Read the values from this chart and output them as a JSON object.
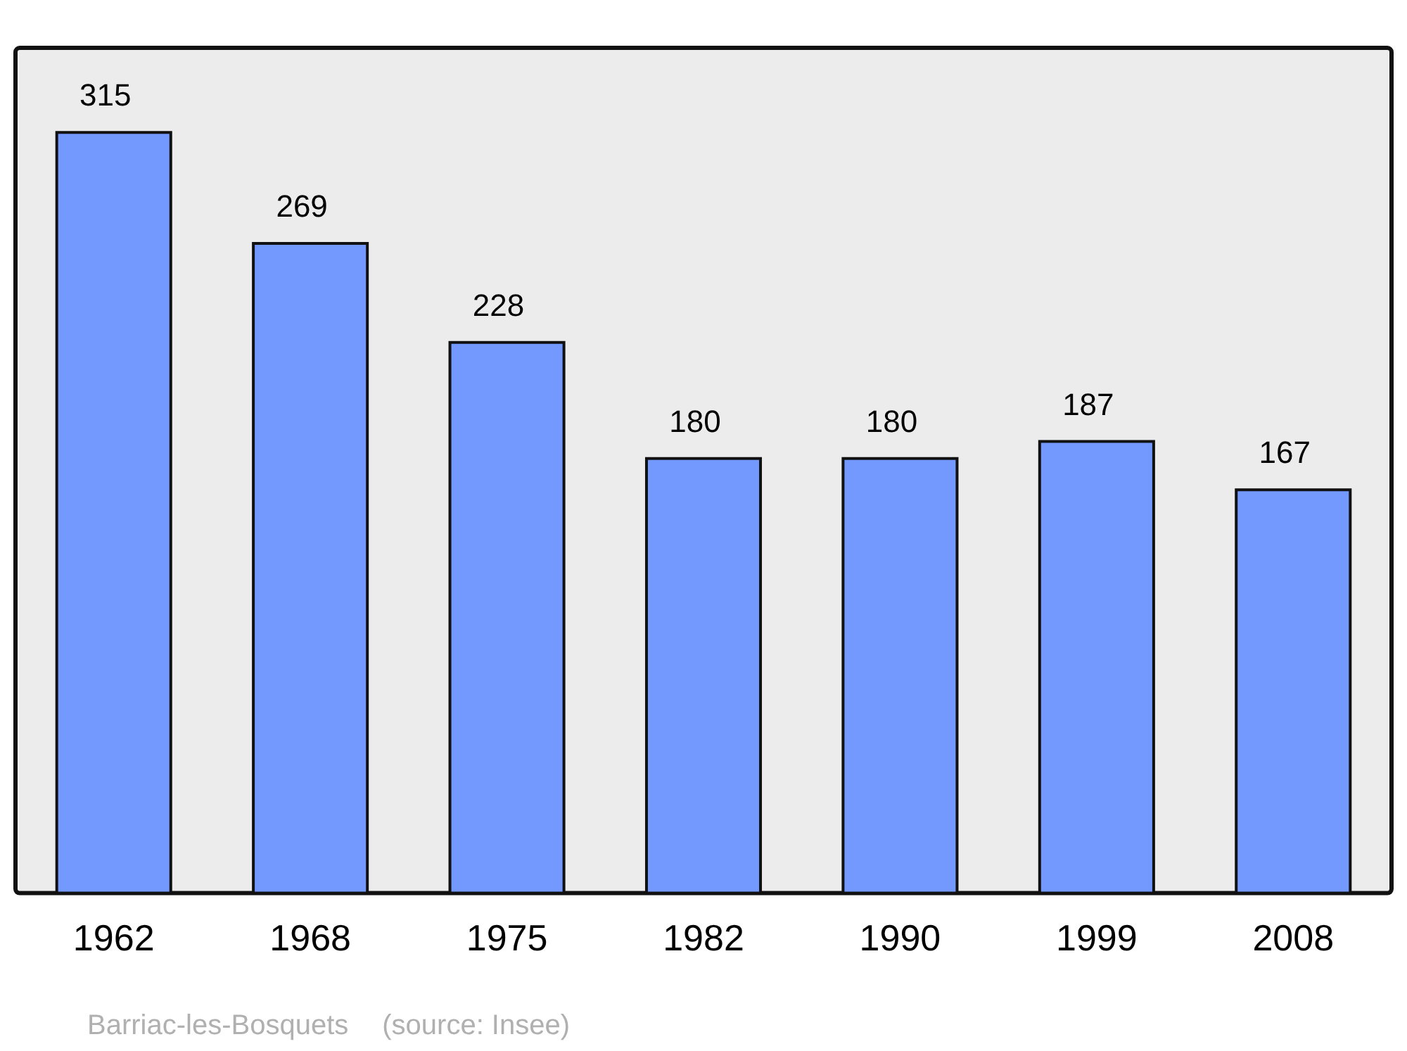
{
  "chart_data": {
    "type": "bar",
    "categories": [
      "1962",
      "1968",
      "1975",
      "1982",
      "1990",
      "1999",
      "2008"
    ],
    "values": [
      315,
      269,
      228,
      180,
      180,
      187,
      167
    ],
    "color": "#7399ff",
    "data_labels": true,
    "grid": false,
    "legend": false,
    "annotations": [
      "Barriac-les-Bosquets",
      "(source: Insee)"
    ]
  }
}
